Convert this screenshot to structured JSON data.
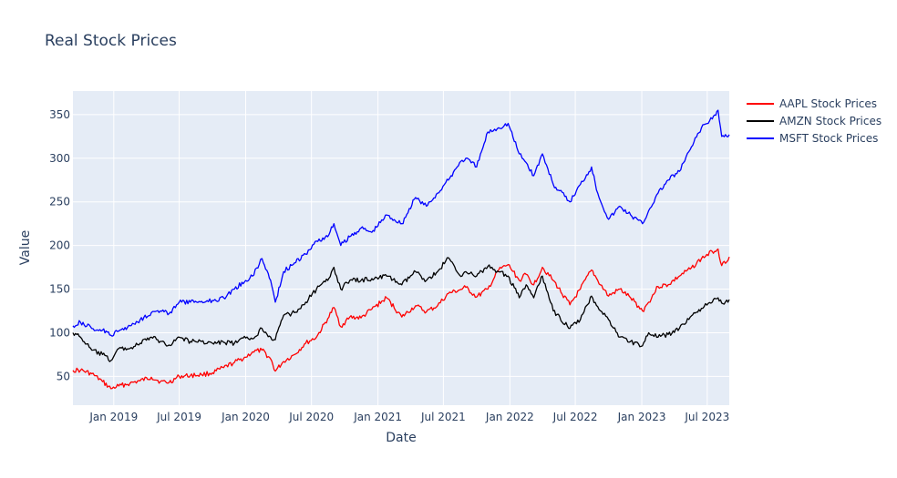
{
  "chart_data": {
    "type": "line",
    "title": "Real Stock Prices",
    "xlabel": "Date",
    "ylabel": "Value",
    "xlim": [
      "2018-09-10",
      "2023-08-31"
    ],
    "ylim": [
      17,
      377
    ],
    "x_ticks": [
      "2019-01-01",
      "2019-07-01",
      "2020-01-01",
      "2020-07-01",
      "2021-01-01",
      "2021-07-01",
      "2022-01-01",
      "2022-07-01",
      "2023-01-01",
      "2023-07-01"
    ],
    "x_tick_labels": [
      "Jan 2019",
      "Jul 2019",
      "Jan 2020",
      "Jul 2020",
      "Jan 2021",
      "Jul 2021",
      "Jan 2022",
      "Jul 2022",
      "Jan 2023",
      "Jul 2023"
    ],
    "y_ticks": [
      50,
      100,
      150,
      200,
      250,
      300,
      350
    ],
    "y_tick_labels": [
      "50",
      "100",
      "150",
      "200",
      "250",
      "300",
      "350"
    ],
    "grid": true,
    "legend_position": "right",
    "plot_bgcolor": "#e5ecf6",
    "series": [
      {
        "name": "AAPL Stock Prices",
        "color": "#ff0000",
        "x": [
          "2018-09-10",
          "2018-10-01",
          "2018-11-01",
          "2018-12-01",
          "2018-12-24",
          "2019-01-15",
          "2019-02-15",
          "2019-03-15",
          "2019-04-15",
          "2019-05-10",
          "2019-06-03",
          "2019-07-01",
          "2019-08-01",
          "2019-09-01",
          "2019-10-01",
          "2019-11-01",
          "2019-12-01",
          "2020-01-01",
          "2020-01-20",
          "2020-02-15",
          "2020-03-10",
          "2020-03-23",
          "2020-04-15",
          "2020-05-15",
          "2020-06-15",
          "2020-07-15",
          "2020-08-15",
          "2020-09-01",
          "2020-09-20",
          "2020-10-15",
          "2020-11-15",
          "2020-12-15",
          "2021-01-25",
          "2021-03-08",
          "2021-04-15",
          "2021-05-15",
          "2021-06-15",
          "2021-07-15",
          "2021-08-15",
          "2021-09-01",
          "2021-10-01",
          "2021-11-01",
          "2021-12-01",
          "2021-12-27",
          "2022-01-27",
          "2022-02-15",
          "2022-03-08",
          "2022-04-01",
          "2022-05-01",
          "2022-06-16",
          "2022-07-15",
          "2022-08-15",
          "2022-09-01",
          "2022-10-01",
          "2022-11-01",
          "2022-12-01",
          "2023-01-03",
          "2023-01-20",
          "2023-02-15",
          "2023-03-15",
          "2023-04-15",
          "2023-05-15",
          "2023-06-15",
          "2023-07-15",
          "2023-07-31",
          "2023-08-10",
          "2023-08-31"
        ],
        "y": [
          57,
          57,
          53,
          44,
          36,
          39,
          42,
          45,
          49,
          44,
          43,
          50,
          51,
          52,
          54,
          60,
          66,
          72,
          78,
          80,
          70,
          56,
          67,
          75,
          88,
          95,
          116,
          129,
          107,
          118,
          117,
          127,
          140,
          118,
          131,
          124,
          131,
          145,
          149,
          152,
          141,
          150,
          172,
          178,
          160,
          167,
          155,
          175,
          160,
          132,
          150,
          172,
          160,
          142,
          150,
          140,
          125,
          135,
          153,
          155,
          165,
          173,
          185,
          193,
          196,
          177,
          187
        ]
      },
      {
        "name": "AMZN Stock Prices",
        "color": "#000000",
        "x": [
          "2018-09-10",
          "2018-10-01",
          "2018-11-01",
          "2018-12-01",
          "2018-12-24",
          "2019-01-15",
          "2019-02-15",
          "2019-03-15",
          "2019-04-15",
          "2019-05-10",
          "2019-06-03",
          "2019-07-01",
          "2019-08-01",
          "2019-09-01",
          "2019-10-01",
          "2019-11-01",
          "2019-12-01",
          "2020-01-01",
          "2020-01-20",
          "2020-02-15",
          "2020-03-10",
          "2020-03-23",
          "2020-04-15",
          "2020-05-15",
          "2020-06-15",
          "2020-07-15",
          "2020-08-15",
          "2020-09-01",
          "2020-09-20",
          "2020-10-15",
          "2020-11-15",
          "2020-12-15",
          "2021-01-25",
          "2021-03-08",
          "2021-04-15",
          "2021-05-15",
          "2021-06-15",
          "2021-07-15",
          "2021-08-15",
          "2021-09-01",
          "2021-10-01",
          "2021-11-01",
          "2021-12-01",
          "2021-12-27",
          "2022-01-27",
          "2022-02-15",
          "2022-03-08",
          "2022-04-01",
          "2022-05-01",
          "2022-06-16",
          "2022-07-15",
          "2022-08-15",
          "2022-09-01",
          "2022-10-01",
          "2022-11-01",
          "2022-12-01",
          "2023-01-03",
          "2023-01-20",
          "2023-02-15",
          "2023-03-15",
          "2023-04-15",
          "2023-05-15",
          "2023-06-15",
          "2023-07-15",
          "2023-07-31",
          "2023-08-10",
          "2023-08-31"
        ],
        "y": [
          100,
          95,
          80,
          75,
          68,
          82,
          82,
          88,
          95,
          90,
          86,
          95,
          90,
          90,
          88,
          89,
          88,
          94,
          93,
          105,
          95,
          92,
          120,
          123,
          135,
          150,
          160,
          175,
          150,
          160,
          160,
          162,
          165,
          155,
          170,
          160,
          170,
          186,
          166,
          170,
          165,
          176,
          170,
          165,
          140,
          155,
          140,
          165,
          125,
          105,
          115,
          142,
          130,
          115,
          95,
          90,
          85,
          100,
          95,
          98,
          105,
          118,
          128,
          135,
          140,
          134,
          138
        ]
      },
      {
        "name": "MSFT Stock Prices",
        "color": "#0000ff",
        "x": [
          "2018-09-10",
          "2018-10-01",
          "2018-11-01",
          "2018-12-01",
          "2018-12-24",
          "2019-01-15",
          "2019-02-15",
          "2019-03-15",
          "2019-04-15",
          "2019-05-10",
          "2019-06-03",
          "2019-07-01",
          "2019-08-01",
          "2019-09-01",
          "2019-10-01",
          "2019-11-01",
          "2019-12-01",
          "2020-01-01",
          "2020-01-20",
          "2020-02-15",
          "2020-03-10",
          "2020-03-23",
          "2020-04-15",
          "2020-05-15",
          "2020-06-15",
          "2020-07-15",
          "2020-08-15",
          "2020-09-01",
          "2020-09-20",
          "2020-10-15",
          "2020-11-15",
          "2020-12-15",
          "2021-01-25",
          "2021-03-08",
          "2021-04-15",
          "2021-05-15",
          "2021-06-15",
          "2021-07-15",
          "2021-08-15",
          "2021-09-01",
          "2021-10-01",
          "2021-11-01",
          "2021-12-01",
          "2021-12-27",
          "2022-01-27",
          "2022-02-15",
          "2022-03-08",
          "2022-04-01",
          "2022-05-01",
          "2022-06-16",
          "2022-07-15",
          "2022-08-15",
          "2022-09-01",
          "2022-10-01",
          "2022-11-01",
          "2022-12-01",
          "2023-01-03",
          "2023-01-20",
          "2023-02-15",
          "2023-03-15",
          "2023-04-15",
          "2023-05-15",
          "2023-06-15",
          "2023-07-15",
          "2023-07-31",
          "2023-08-10",
          "2023-08-31"
        ],
        "y": [
          108,
          112,
          105,
          103,
          97,
          102,
          108,
          115,
          123,
          125,
          122,
          135,
          135,
          136,
          137,
          140,
          150,
          160,
          165,
          185,
          160,
          135,
          170,
          180,
          190,
          205,
          210,
          225,
          200,
          210,
          220,
          215,
          235,
          225,
          255,
          245,
          260,
          275,
          295,
          300,
          290,
          330,
          335,
          340,
          305,
          295,
          280,
          305,
          270,
          250,
          270,
          290,
          260,
          230,
          245,
          235,
          225,
          240,
          260,
          275,
          285,
          310,
          335,
          345,
          355,
          325,
          327
        ]
      }
    ]
  }
}
